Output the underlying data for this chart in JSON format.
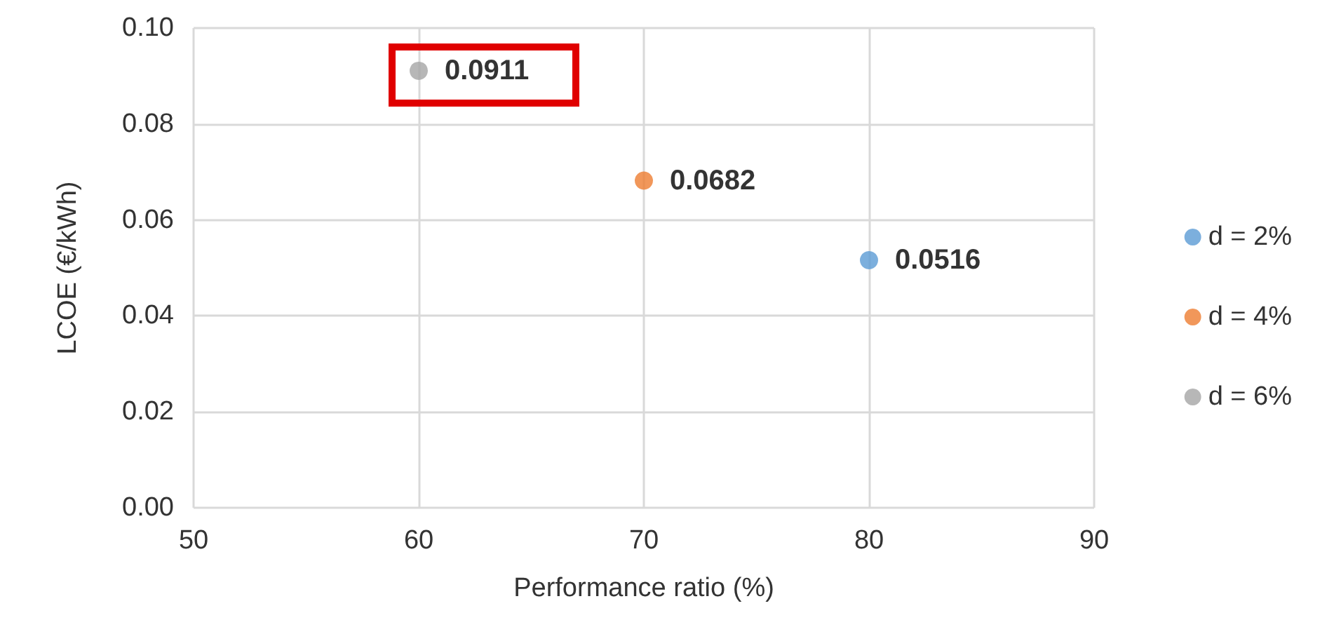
{
  "chart_data": {
    "type": "scatter",
    "xlabel": "Performance ratio (%)",
    "ylabel": "LCOE (€/kWh)",
    "series": [
      {
        "name": "d = 2%",
        "color": "#5b9bd5",
        "x": [
          80
        ],
        "values": [
          0.0516
        ]
      },
      {
        "name": "d = 4%",
        "color": "#ed7d31",
        "x": [
          70
        ],
        "values": [
          0.0682
        ]
      },
      {
        "name": "d = 6%",
        "color": "#a5a5a5",
        "x": [
          60
        ],
        "values": [
          0.0911
        ]
      }
    ],
    "xlim": [
      50,
      90
    ],
    "xticks": [
      50,
      60,
      70,
      80,
      90
    ],
    "ylim": [
      0,
      0.1
    ],
    "yticks": [
      {
        "value": 0,
        "label": "0.00"
      },
      {
        "value": 0.02,
        "label": "0.02"
      },
      {
        "value": 0.04,
        "label": "0.04"
      },
      {
        "value": 0.06,
        "label": "0.06"
      },
      {
        "value": 0.08,
        "label": "0.08"
      },
      {
        "value": 0.1,
        "label": "0.10"
      }
    ],
    "grid": true,
    "legend": "right",
    "marker": "circle",
    "data_labels": true
  }
}
